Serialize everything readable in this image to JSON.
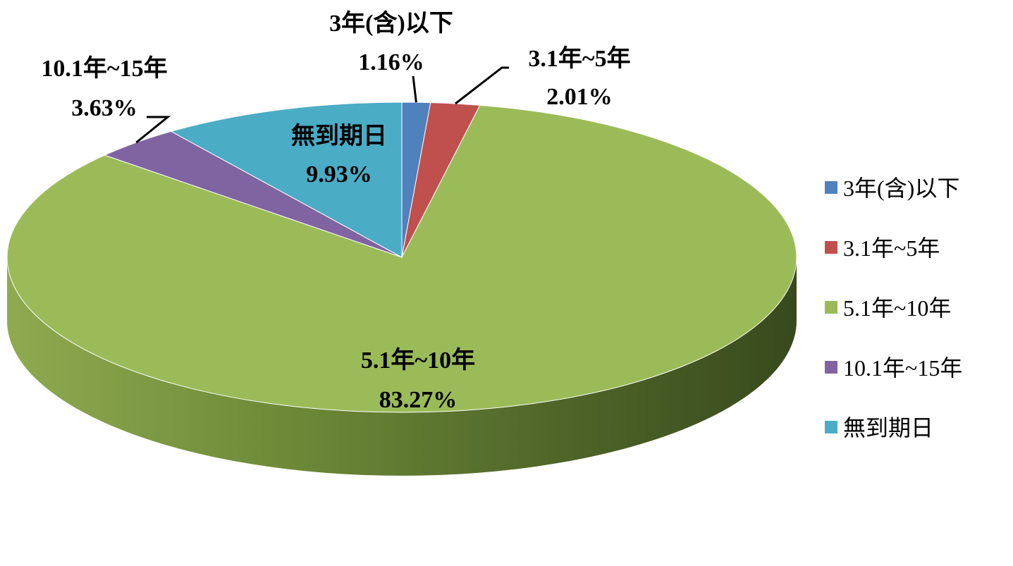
{
  "chart_data": {
    "type": "pie",
    "style": "3d",
    "title": "",
    "series": [
      {
        "values": [
          1.16,
          2.01,
          83.27,
          3.63,
          9.93
        ]
      }
    ],
    "slices": [
      {
        "label": "3年(含)以下",
        "value": 1.16,
        "value_label": "1.16%",
        "color": "#4F81BD"
      },
      {
        "label": "3.1年~5年",
        "value": 2.01,
        "value_label": "2.01%",
        "color": "#C0504D"
      },
      {
        "label": "5.1年~10年",
        "value": 83.27,
        "value_label": "83.27%",
        "color": "#9BBB59"
      },
      {
        "label": "10.1年~15年",
        "value": 3.63,
        "value_label": "3.63%",
        "color": "#8064A2"
      },
      {
        "label": "無到期日",
        "value": 9.93,
        "value_label": "9.93%",
        "color": "#4BACC6"
      }
    ],
    "legend": {
      "position": "right",
      "entries": [
        "3年(含)以下",
        "3.1年~5年",
        "5.1年~10年",
        "10.1年~15年",
        "無到期日"
      ]
    }
  }
}
